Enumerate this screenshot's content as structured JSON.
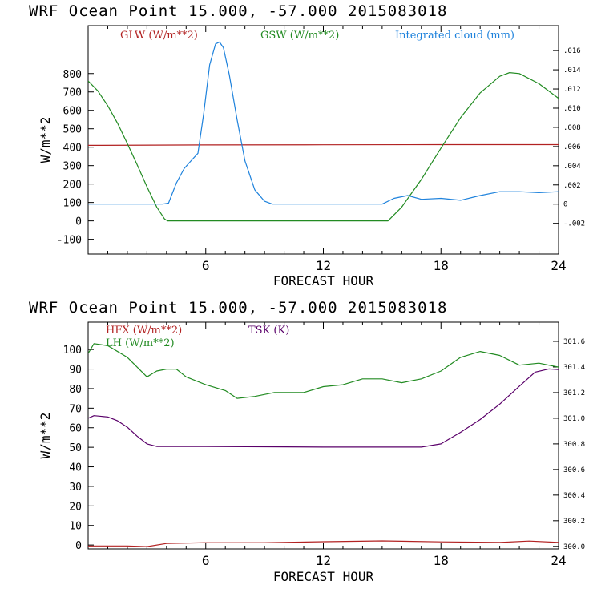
{
  "chart_data": [
    {
      "type": "line",
      "title": "WRF   Ocean Point   15.000, -57.000  2015083018",
      "xlabel": "FORECAST HOUR",
      "ylabel": "W/m**2",
      "xlim": [
        0,
        24
      ],
      "ylim": [
        -180,
        1060
      ],
      "x_ticks": [
        6,
        12,
        18,
        24
      ],
      "y_ticks": [
        -100,
        0,
        100,
        200,
        300,
        400,
        500,
        600,
        700,
        800
      ],
      "y_tick_labels": [
        "-100",
        "0",
        "100",
        "200",
        "300",
        "400",
        "500",
        "600",
        "700",
        "800"
      ],
      "right_axis": {
        "label": "Integrated cloud (mm)",
        "lim": [
          -0.0052,
          0.0186
        ],
        "ticks": [
          -0.002,
          0,
          0.002,
          0.004,
          0.006,
          0.008,
          0.01,
          0.012,
          0.014,
          0.016
        ],
        "tick_labels": [
          "-.002",
          "0",
          ".002",
          ".004",
          ".006",
          ".008",
          ".010",
          ".012",
          ".014",
          ".016"
        ]
      },
      "series": [
        {
          "name": "GLW (W/m**2)",
          "color": "#b22222",
          "axis": "left",
          "x": [
            0,
            6,
            12,
            18,
            24
          ],
          "y": [
            410,
            412,
            413,
            414,
            414
          ]
        },
        {
          "name": "GSW (W/m**2)",
          "color": "#228b22",
          "axis": "left",
          "x": [
            0,
            0.5,
            1,
            1.5,
            2,
            2.5,
            3,
            3.5,
            3.9,
            4.05,
            4.3,
            6,
            10,
            15.3,
            16,
            17,
            18,
            19,
            20,
            21,
            21.5,
            22,
            23,
            24
          ],
          "y": [
            760,
            705,
            625,
            530,
            420,
            305,
            185,
            75,
            10,
            0,
            0,
            0,
            0,
            0,
            75,
            225,
            395,
            560,
            695,
            785,
            805,
            800,
            745,
            665
          ]
        },
        {
          "name": "Integrated cloud (mm)",
          "color": "#1e82dc",
          "axis": "right",
          "x": [
            0,
            3.8,
            4.1,
            4.5,
            4.9,
            5.2,
            5.6,
            5.9,
            6.2,
            6.5,
            6.7,
            6.9,
            7.2,
            7.6,
            8.0,
            8.5,
            9.0,
            9.4,
            12,
            15,
            15.6,
            16.3,
            17,
            18,
            19,
            20,
            21,
            22,
            23,
            24
          ],
          "y": [
            0,
            0,
            0.0001,
            0.0022,
            0.0037,
            0.0044,
            0.0053,
            0.0095,
            0.0145,
            0.0167,
            0.0169,
            0.0163,
            0.0135,
            0.0088,
            0.0045,
            0.0015,
            0.0003,
            0,
            0,
            0,
            0.0006,
            0.0009,
            0.0005,
            0.0006,
            0.0004,
            0.0009,
            0.0013,
            0.0013,
            0.0012,
            0.0013
          ]
        }
      ]
    },
    {
      "type": "line",
      "title": "WRF   Ocean Point   15.000, -57.000  2015083018",
      "xlabel": "FORECAST HOUR",
      "ylabel": "W/m**2",
      "xlim": [
        0,
        24
      ],
      "ylim": [
        -2,
        114
      ],
      "x_ticks": [
        6,
        12,
        18,
        24
      ],
      "y_ticks": [
        0,
        10,
        20,
        30,
        40,
        50,
        60,
        70,
        80,
        90,
        100
      ],
      "y_tick_labels": [
        "0",
        "10",
        "20",
        "30",
        "40",
        "50",
        "60",
        "70",
        "80",
        "90",
        "100"
      ],
      "right_axis": {
        "label": "TSK (K)",
        "lim": [
          299.98,
          301.75
        ],
        "ticks": [
          300.0,
          300.2,
          300.4,
          300.6,
          300.8,
          301.0,
          301.2,
          301.4,
          301.6
        ],
        "tick_labels": [
          "300.0",
          "300.2",
          "300.4",
          "300.6",
          "300.8",
          "301.0",
          "301.2",
          "301.4",
          "301.6"
        ]
      },
      "series": [
        {
          "name": "HFX (W/m**2)",
          "color": "#b22222",
          "axis": "left",
          "x": [
            0,
            2,
            3,
            4,
            6,
            9,
            12,
            15,
            18,
            21,
            22.5,
            24
          ],
          "y": [
            -0.5,
            -0.5,
            -0.8,
            0.8,
            1.2,
            1.2,
            1.7,
            2.1,
            1.6,
            1.3,
            2.0,
            1.3
          ]
        },
        {
          "name": "LH (W/m**2)",
          "color": "#228b22",
          "axis": "left",
          "x": [
            0,
            0.3,
            1,
            2,
            3,
            3.5,
            4,
            4.5,
            5,
            6,
            7,
            7.6,
            8.5,
            9.5,
            11,
            12,
            13,
            14,
            15,
            16,
            17,
            18,
            19,
            20,
            21,
            22,
            23,
            24
          ],
          "y": [
            98,
            103,
            102,
            96,
            86,
            89,
            90,
            90,
            86,
            82,
            79,
            75,
            76,
            78,
            78,
            81,
            82,
            85,
            85,
            83,
            85,
            89,
            96,
            99,
            97,
            92,
            93,
            91
          ]
        },
        {
          "name": "TSK (K)",
          "color": "#5a006a",
          "axis": "right",
          "x": [
            0,
            0.3,
            1,
            1.5,
            2,
            2.5,
            3,
            3.5,
            6,
            12,
            17,
            18,
            19,
            20,
            21,
            22,
            22.8,
            23.5,
            24
          ],
          "y": [
            301.0,
            301.02,
            301.01,
            300.98,
            300.93,
            300.86,
            300.8,
            300.78,
            300.78,
            300.775,
            300.775,
            300.8,
            300.89,
            300.99,
            301.11,
            301.25,
            301.36,
            301.385,
            301.38
          ]
        }
      ]
    }
  ]
}
